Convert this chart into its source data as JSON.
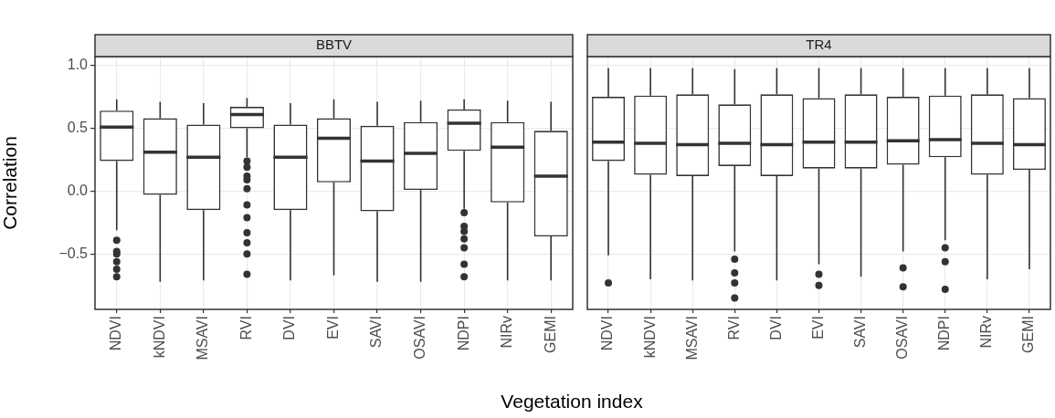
{
  "chart_data": [
    {
      "type": "box",
      "title": "BBTV",
      "xlabel": "Vegetation index",
      "ylabel": "Correlation",
      "color": "#333333",
      "grid": true,
      "categories": [
        "NDVI",
        "kNDVI",
        "MSAVI",
        "RVI",
        "DVI",
        "EVI",
        "SAVI",
        "OSAVI",
        "NDPI",
        "NIRv",
        "GEMI"
      ],
      "ylim": [
        -0.94,
        1.07
      ],
      "yticks": [
        {
          "value": -0.5,
          "label": "−0.5"
        },
        {
          "value": 0,
          "label": "0.0"
        },
        {
          "value": 0.5,
          "label": "0.5"
        },
        {
          "value": 1,
          "label": "1.0"
        }
      ],
      "boxes": [
        {
          "low": -0.31,
          "q1": 0.24,
          "median": 0.51,
          "q3": 0.64,
          "high": 0.73,
          "outliers": [
            -0.39,
            -0.48,
            -0.5,
            -0.56,
            -0.62,
            -0.68
          ]
        },
        {
          "low": -0.72,
          "q1": -0.03,
          "median": 0.31,
          "q3": 0.58,
          "high": 0.71
        },
        {
          "low": -0.71,
          "q1": -0.15,
          "median": 0.27,
          "q3": 0.53,
          "high": 0.7
        },
        {
          "low": 0.27,
          "q1": 0.5,
          "median": 0.61,
          "q3": 0.67,
          "high": 0.74,
          "outliers": [
            0.24,
            0.19,
            0.12,
            0.09,
            0.02,
            -0.11,
            -0.21,
            -0.33,
            -0.41,
            -0.5,
            -0.66
          ]
        },
        {
          "low": -0.71,
          "q1": -0.15,
          "median": 0.27,
          "q3": 0.53,
          "high": 0.7
        },
        {
          "low": -0.67,
          "q1": 0.07,
          "median": 0.42,
          "q3": 0.58,
          "high": 0.73
        },
        {
          "low": -0.72,
          "q1": -0.16,
          "median": 0.24,
          "q3": 0.52,
          "high": 0.71
        },
        {
          "low": -0.72,
          "q1": 0.01,
          "median": 0.3,
          "q3": 0.55,
          "high": 0.72
        },
        {
          "low": -0.14,
          "q1": 0.32,
          "median": 0.54,
          "q3": 0.65,
          "high": 0.73,
          "outliers": [
            -0.17,
            -0.28,
            -0.32,
            -0.38,
            -0.45,
            -0.58,
            -0.68
          ]
        },
        {
          "low": -0.71,
          "q1": -0.09,
          "median": 0.35,
          "q3": 0.55,
          "high": 0.72
        },
        {
          "low": -0.71,
          "q1": -0.36,
          "median": 0.12,
          "q3": 0.48,
          "high": 0.71
        }
      ]
    },
    {
      "type": "box",
      "title": "TR4",
      "color": "#333333",
      "grid": true,
      "tick_labels": "x",
      "categories": [
        "NDVI",
        "kNDVI",
        "MSAVI",
        "RVI",
        "DVI",
        "EVI",
        "SAVI",
        "OSAVI",
        "NDPI",
        "NIRv",
        "GEMI"
      ],
      "ylim": [
        -0.94,
        1.07
      ],
      "yticks": [
        -0.5,
        0,
        0.5,
        1
      ],
      "boxes": [
        {
          "low": -0.51,
          "q1": 0.24,
          "median": 0.39,
          "q3": 0.75,
          "high": 0.98,
          "outliers": [
            -0.73
          ]
        },
        {
          "low": -0.7,
          "q1": 0.13,
          "median": 0.38,
          "q3": 0.76,
          "high": 0.98
        },
        {
          "low": -0.71,
          "q1": 0.12,
          "median": 0.37,
          "q3": 0.77,
          "high": 0.98
        },
        {
          "low": -0.48,
          "q1": 0.2,
          "median": 0.38,
          "q3": 0.69,
          "high": 0.97,
          "outliers": [
            -0.54,
            -0.65,
            -0.73,
            -0.85
          ]
        },
        {
          "low": -0.71,
          "q1": 0.12,
          "median": 0.37,
          "q3": 0.77,
          "high": 0.98
        },
        {
          "low": -0.58,
          "q1": 0.18,
          "median": 0.39,
          "q3": 0.74,
          "high": 0.98,
          "outliers": [
            -0.66,
            -0.75
          ]
        },
        {
          "low": -0.68,
          "q1": 0.18,
          "median": 0.39,
          "q3": 0.77,
          "high": 0.98
        },
        {
          "low": -0.48,
          "q1": 0.21,
          "median": 0.4,
          "q3": 0.75,
          "high": 0.98,
          "outliers": [
            -0.61,
            -0.76
          ]
        },
        {
          "low": -0.39,
          "q1": 0.27,
          "median": 0.41,
          "q3": 0.76,
          "high": 0.98,
          "outliers": [
            -0.45,
            -0.56,
            -0.78
          ]
        },
        {
          "low": -0.7,
          "q1": 0.13,
          "median": 0.38,
          "q3": 0.77,
          "high": 0.98
        },
        {
          "low": -0.62,
          "q1": 0.17,
          "median": 0.37,
          "q3": 0.74,
          "high": 0.98
        }
      ]
    }
  ]
}
